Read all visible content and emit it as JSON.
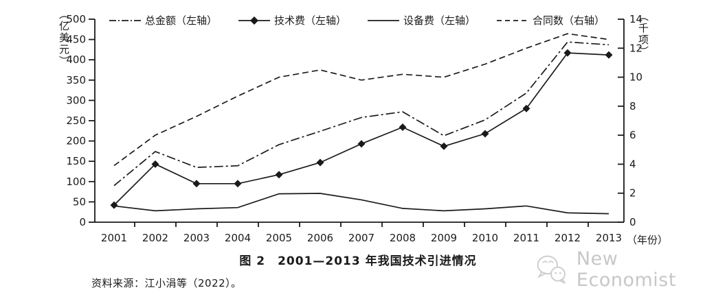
{
  "caption": "图 2　2001—2013 年我国技术引进情况",
  "source": "资料来源：江小涓等（2022）。",
  "watermark": {
    "icon": "wechat-icon",
    "text": "New Economist"
  },
  "colors": {
    "line": "#1a1a1a",
    "text": "#1a1a1a",
    "watermark": "#c7c7c7",
    "background": "#ffffff"
  },
  "chart_data": {
    "type": "line",
    "title": "图 2　2001—2013 年我国技术引进情况",
    "x": [
      2001,
      2002,
      2003,
      2004,
      2005,
      2006,
      2007,
      2008,
      2009,
      2010,
      2011,
      2012,
      2013
    ],
    "xlabel": "（年份）",
    "left_axis": {
      "label": "（亿美元）",
      "range": [
        0,
        500
      ],
      "tick_step": 50,
      "ticks": [
        0,
        50,
        100,
        150,
        200,
        250,
        300,
        350,
        400,
        450,
        500
      ]
    },
    "right_axis": {
      "label": "（千项）",
      "range": [
        0,
        14
      ],
      "tick_step": 2,
      "ticks": [
        0,
        2,
        4,
        6,
        8,
        10,
        12,
        14
      ]
    },
    "legend_position": "top",
    "grid": false,
    "series": [
      {
        "name": "总金额（左轴）",
        "axis": "left",
        "line_style": "dashdot",
        "marker": "none",
        "values": [
          90,
          174,
          135,
          139,
          191,
          224,
          258,
          272,
          213,
          252,
          318,
          444,
          437
        ]
      },
      {
        "name": "技术费（左轴）",
        "axis": "left",
        "line_style": "solid",
        "marker": "diamond",
        "values": [
          42,
          143,
          95,
          95,
          117,
          147,
          193,
          234,
          187,
          218,
          280,
          417,
          412
        ]
      },
      {
        "name": "设备费（左轴）",
        "axis": "left",
        "line_style": "solid",
        "marker": "none",
        "values": [
          40,
          28,
          33,
          36,
          70,
          71,
          55,
          34,
          28,
          33,
          40,
          23,
          21
        ]
      },
      {
        "name": "合同数（右轴）",
        "axis": "right",
        "line_style": "dashed",
        "marker": "none",
        "values": [
          3.9,
          6.0,
          7.3,
          8.7,
          10.0,
          10.5,
          9.8,
          10.2,
          10.0,
          10.9,
          12.0,
          13.0,
          12.6
        ]
      }
    ]
  }
}
